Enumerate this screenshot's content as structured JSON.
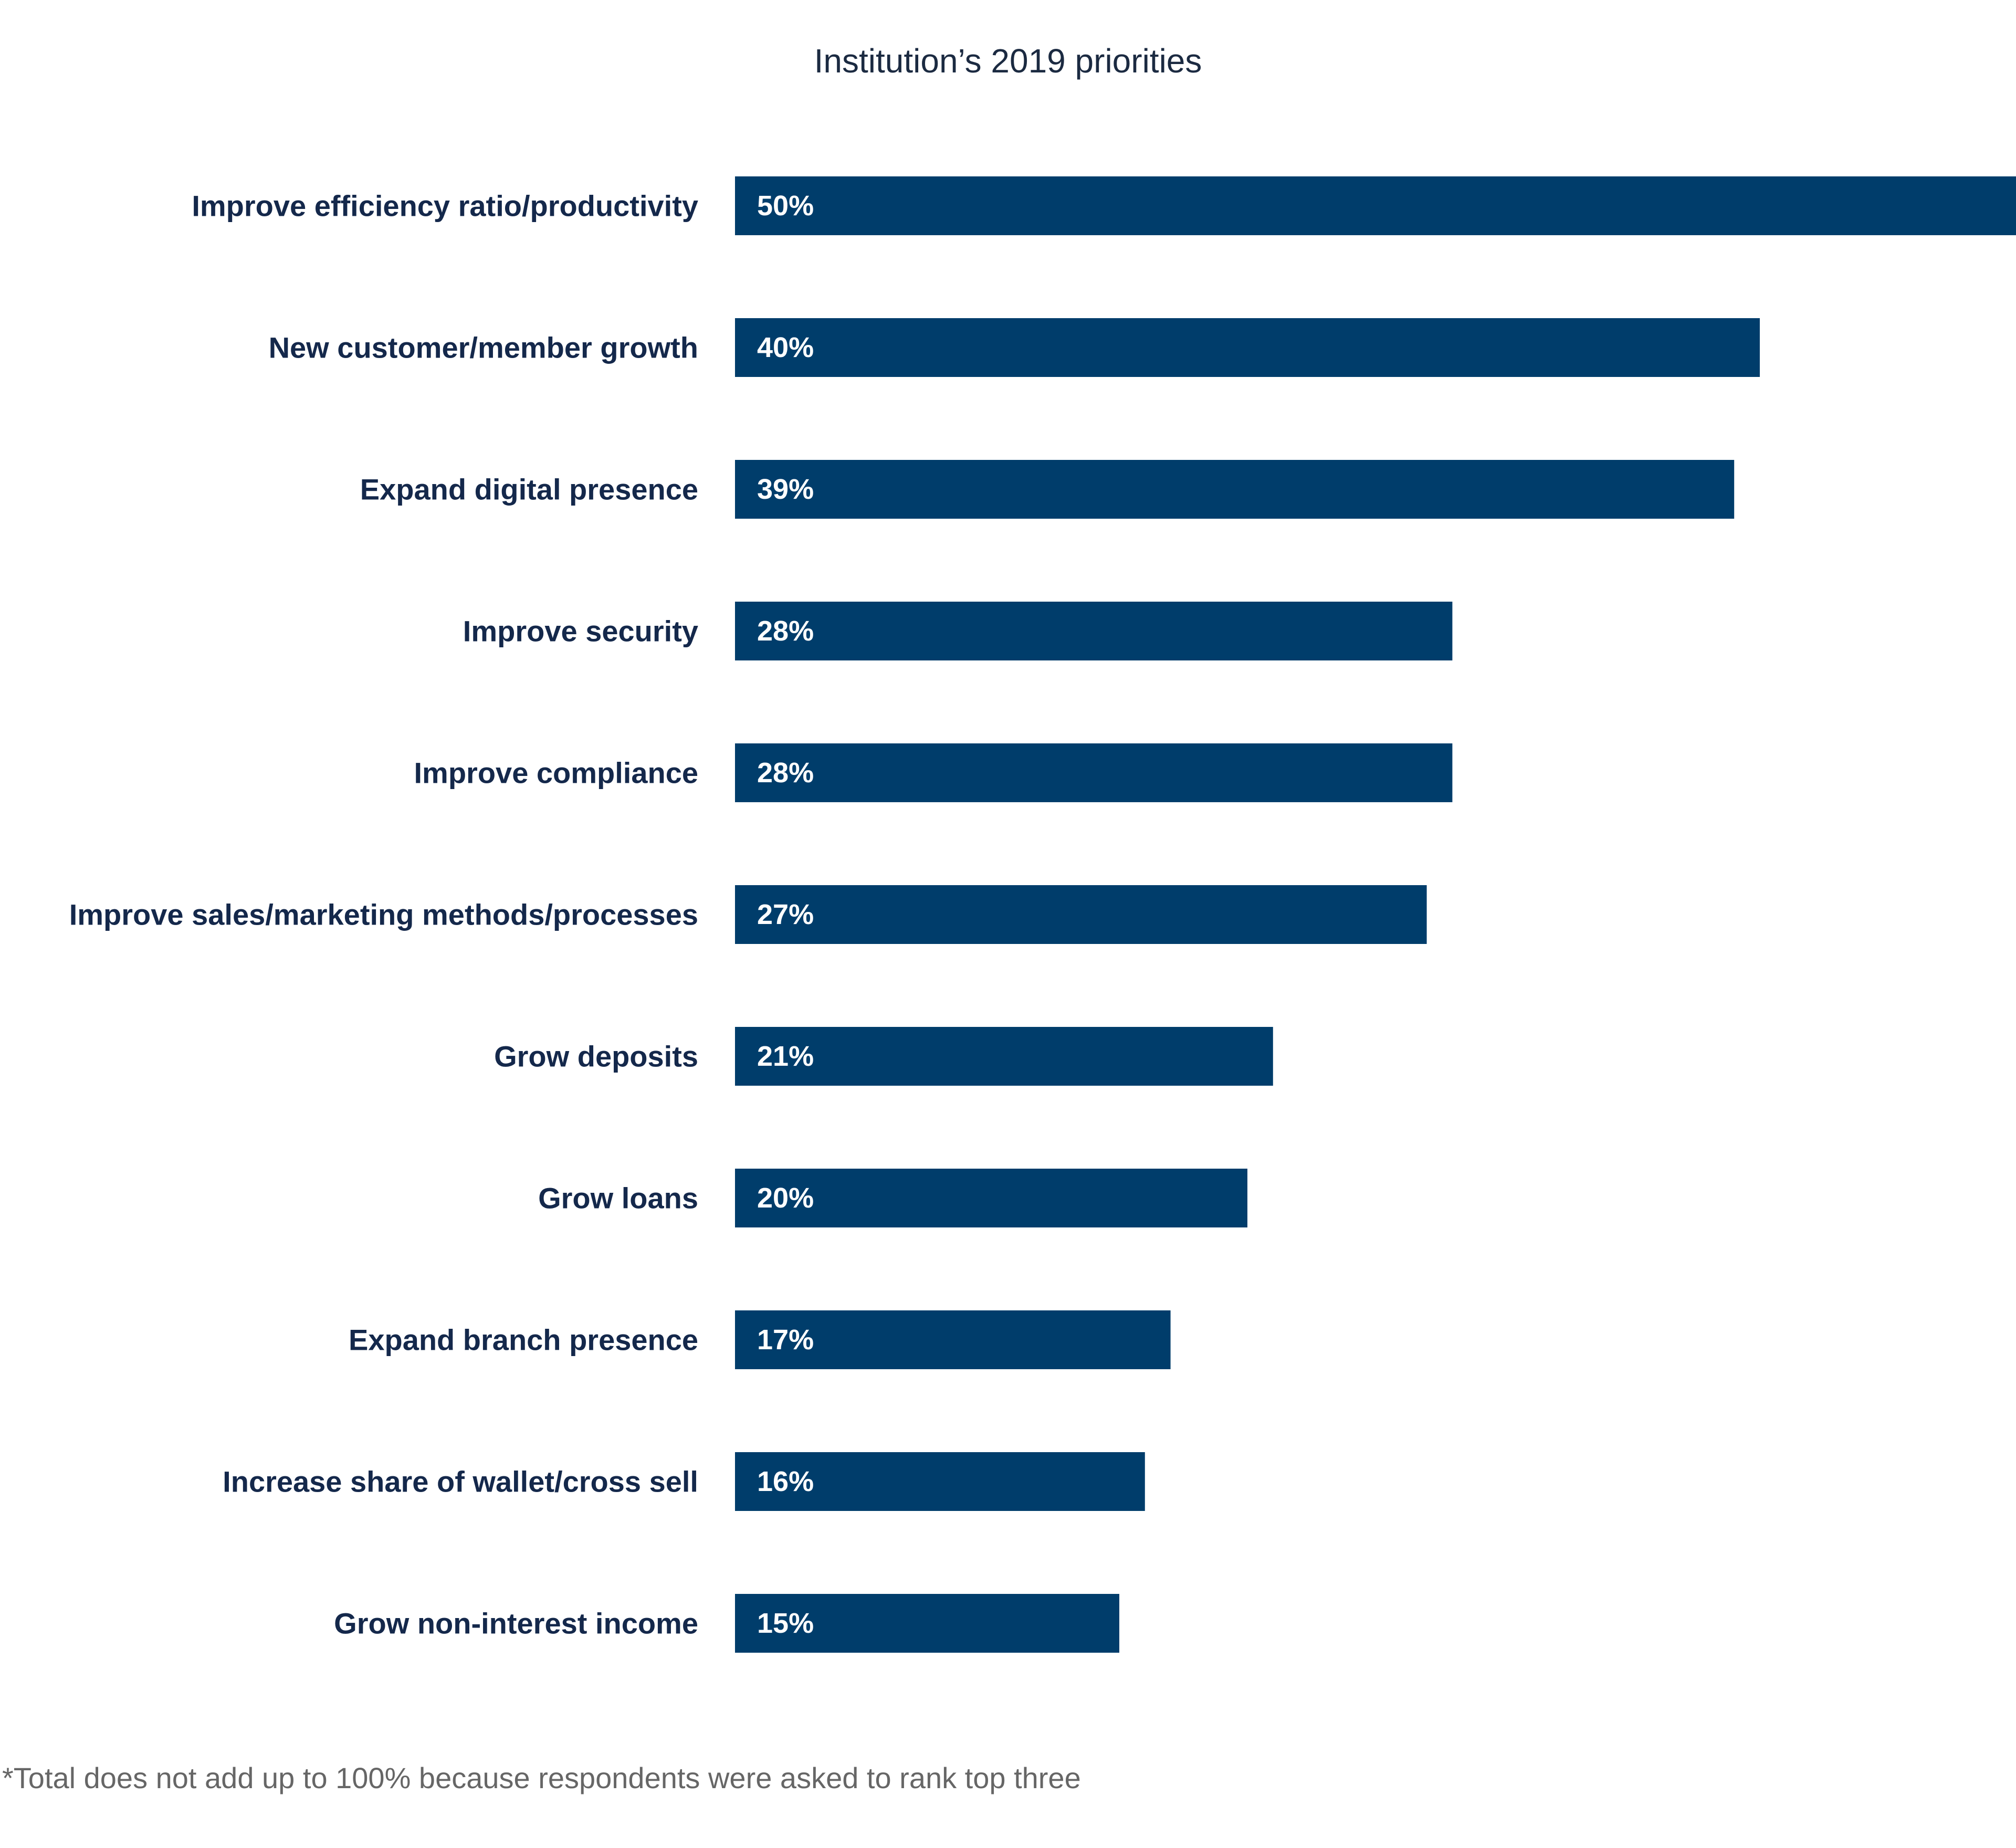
{
  "chart_data": {
    "type": "bar",
    "orientation": "horizontal",
    "title": "Institution’s 2019 priorities",
    "categories": [
      "Improve efficiency ratio/productivity",
      "New customer/member growth",
      "Expand digital presence",
      "Improve security",
      "Improve compliance",
      "Improve sales/marketing methods/processes",
      "Grow deposits",
      "Grow loans",
      "Expand branch presence",
      "Increase share of wallet/cross sell",
      "Grow non-interest income"
    ],
    "values": [
      50,
      40,
      39,
      28,
      28,
      27,
      21,
      20,
      17,
      16,
      15
    ],
    "value_labels": [
      "50%",
      "40%",
      "39%",
      "28%",
      "28%",
      "27%",
      "21%",
      "20%",
      "17%",
      "16%",
      "15%"
    ],
    "unit": "%",
    "xlim": [
      0,
      50
    ],
    "grid": false,
    "legend": "none",
    "bar_color": "#003d6b",
    "footnote": "*Total does not add up to 100% because respondents were asked to rank top three"
  }
}
